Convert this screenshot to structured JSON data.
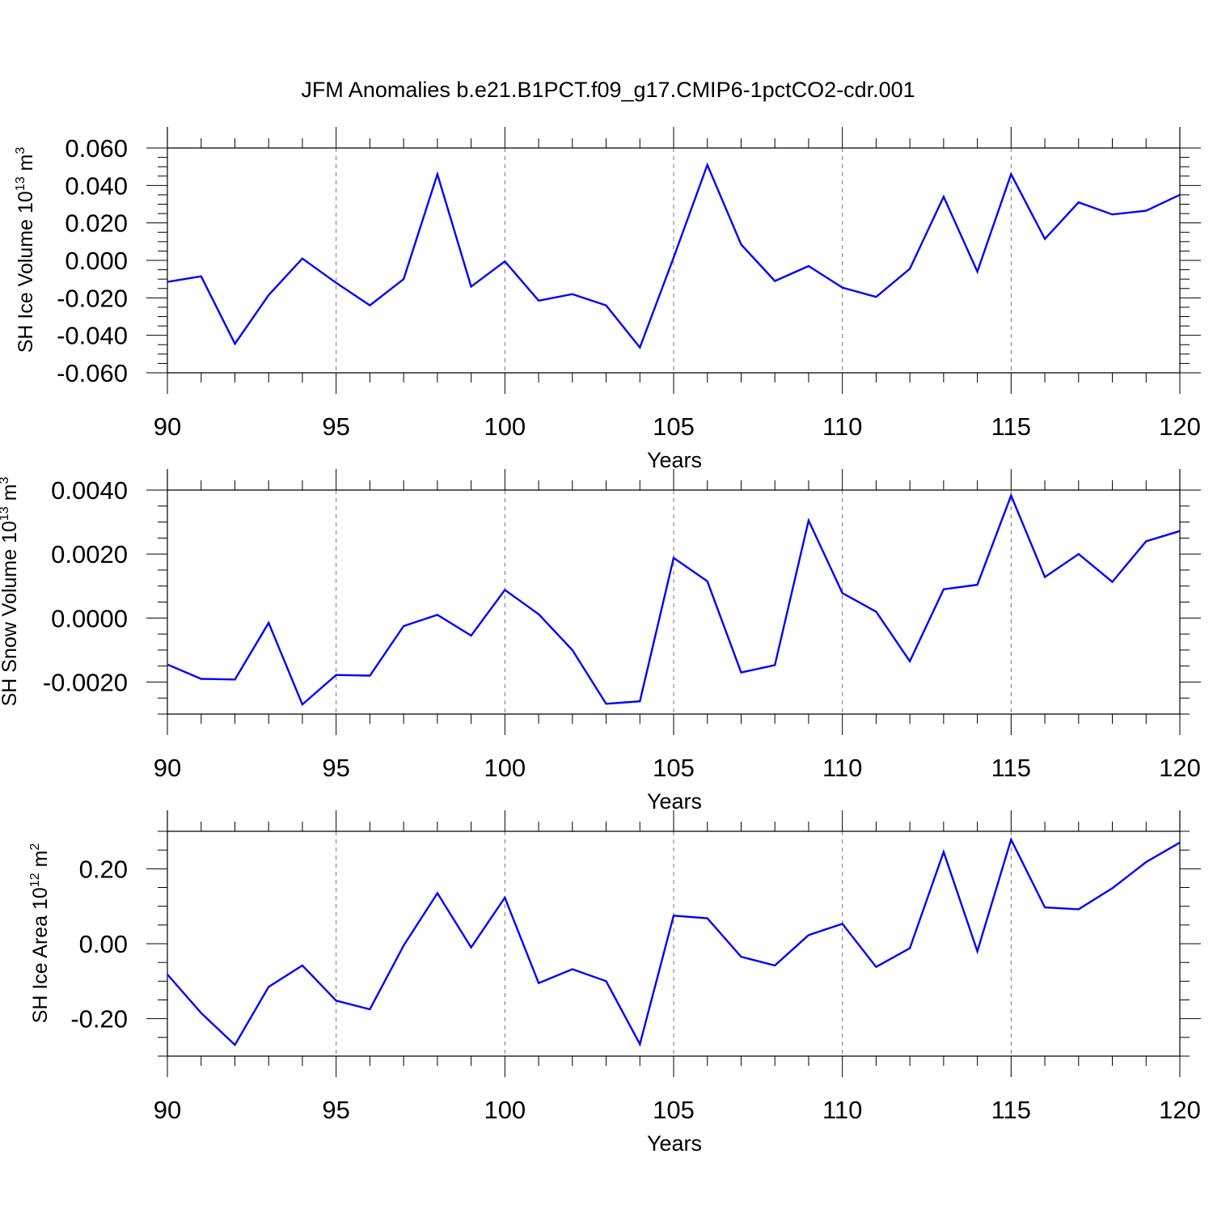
{
  "title": "JFM Anomalies b.e21.B1PCT.f09_g17.CMIP6-1pctCO2-cdr.001",
  "chart_data": [
    {
      "type": "line",
      "title": "",
      "xlabel": "Years",
      "ylabel": "SH Ice Volume",
      "yunit_base": "10",
      "yunit_exp": "13",
      "yunit_dim": "m",
      "yunit_dim_exp": "3",
      "xlim": [
        90,
        120
      ],
      "ylim": [
        -0.06,
        0.06
      ],
      "xticks": [
        90,
        95,
        100,
        105,
        110,
        115,
        120
      ],
      "xticklabels": [
        "90",
        "95",
        "100",
        "105",
        "110",
        "115",
        "120"
      ],
      "yticks": [
        -0.06,
        -0.04,
        -0.02,
        0.0,
        0.02,
        0.04,
        0.06
      ],
      "yticklabels": [
        "-0.060",
        "-0.040",
        "-0.020",
        "0.000",
        "0.020",
        "0.040",
        "0.060"
      ],
      "grid_x": [
        95,
        100,
        105,
        110,
        115
      ],
      "series": [
        {
          "name": "SH Ice Volume",
          "color": "#0000ff",
          "x": [
            90,
            91,
            92,
            93,
            94,
            95,
            96,
            97,
            98,
            99,
            100,
            101,
            102,
            103,
            104,
            105,
            106,
            107,
            108,
            109,
            110,
            111,
            112,
            113,
            114,
            115,
            116,
            117,
            118,
            119,
            120
          ],
          "values": [
            -0.0115,
            -0.0085,
            -0.0445,
            -0.0185,
            0.001,
            -0.012,
            -0.024,
            -0.01,
            0.046,
            -0.014,
            -0.0005,
            -0.0215,
            -0.018,
            -0.024,
            -0.0465,
            0.0015,
            0.051,
            0.0085,
            -0.011,
            -0.003,
            -0.0145,
            -0.0195,
            -0.0045,
            0.034,
            -0.006,
            0.046,
            0.0115,
            0.031,
            0.0245,
            0.0265,
            0.035
          ]
        }
      ]
    },
    {
      "type": "line",
      "title": "",
      "xlabel": "Years",
      "ylabel": "SH Snow Volume",
      "yunit_base": "10",
      "yunit_exp": "13",
      "yunit_dim": "m",
      "yunit_dim_exp": "3",
      "xlim": [
        90,
        120
      ],
      "ylim": [
        -0.003,
        0.004
      ],
      "xticks": [
        90,
        95,
        100,
        105,
        110,
        115,
        120
      ],
      "xticklabels": [
        "90",
        "95",
        "100",
        "105",
        "110",
        "115",
        "120"
      ],
      "yticks": [
        -0.002,
        0.0,
        0.002,
        0.004
      ],
      "yticklabels": [
        "-0.0020",
        "0.0000",
        "0.0020",
        "0.0040"
      ],
      "grid_x": [
        95,
        100,
        105,
        110,
        115
      ],
      "series": [
        {
          "name": "SH Snow Volume",
          "color": "#0000ff",
          "x": [
            90,
            91,
            92,
            93,
            94,
            95,
            96,
            97,
            98,
            99,
            100,
            101,
            102,
            103,
            104,
            105,
            106,
            107,
            108,
            109,
            110,
            111,
            112,
            113,
            114,
            115,
            116,
            117,
            118,
            119,
            120
          ],
          "values": [
            -0.00145,
            -0.0019,
            -0.00192,
            -0.00015,
            -0.0027,
            -0.00178,
            -0.0018,
            -0.00025,
            0.0001,
            -0.00055,
            0.00088,
            0.00012,
            -0.001,
            -0.00268,
            -0.0026,
            0.00188,
            0.00115,
            -0.0017,
            -0.00147,
            0.00305,
            0.00078,
            0.0002,
            -0.00135,
            0.0009,
            0.00104,
            0.00383,
            0.00128,
            0.002,
            0.00113,
            0.0024,
            0.00272
          ]
        }
      ]
    },
    {
      "type": "line",
      "title": "",
      "xlabel": "Years",
      "ylabel": "SH Ice Area",
      "yunit_base": "10",
      "yunit_exp": "12",
      "yunit_dim": "m",
      "yunit_dim_exp": "2",
      "xlim": [
        90,
        120
      ],
      "ylim": [
        -0.3,
        0.3
      ],
      "xticks": [
        90,
        95,
        100,
        105,
        110,
        115,
        120
      ],
      "xticklabels": [
        "90",
        "95",
        "100",
        "105",
        "110",
        "115",
        "120"
      ],
      "yticks": [
        -0.2,
        0.0,
        0.2
      ],
      "yticklabels": [
        "-0.20",
        "0.00",
        "0.20"
      ],
      "grid_x": [
        95,
        100,
        105,
        110,
        115
      ],
      "series": [
        {
          "name": "SH Ice Area",
          "color": "#0000ff",
          "x": [
            90,
            91,
            92,
            93,
            94,
            95,
            96,
            97,
            98,
            99,
            100,
            101,
            102,
            103,
            104,
            105,
            106,
            107,
            108,
            109,
            110,
            111,
            112,
            113,
            114,
            115,
            116,
            117,
            118,
            119,
            120
          ],
          "values": [
            -0.082,
            -0.185,
            -0.27,
            -0.115,
            -0.058,
            -0.152,
            -0.175,
            -0.005,
            0.135,
            -0.01,
            0.123,
            -0.105,
            -0.068,
            -0.1,
            -0.268,
            0.075,
            0.068,
            -0.035,
            -0.058,
            0.023,
            0.053,
            -0.062,
            -0.012,
            0.245,
            -0.02,
            0.278,
            0.097,
            0.092,
            0.148,
            0.218,
            0.27
          ]
        }
      ]
    }
  ]
}
